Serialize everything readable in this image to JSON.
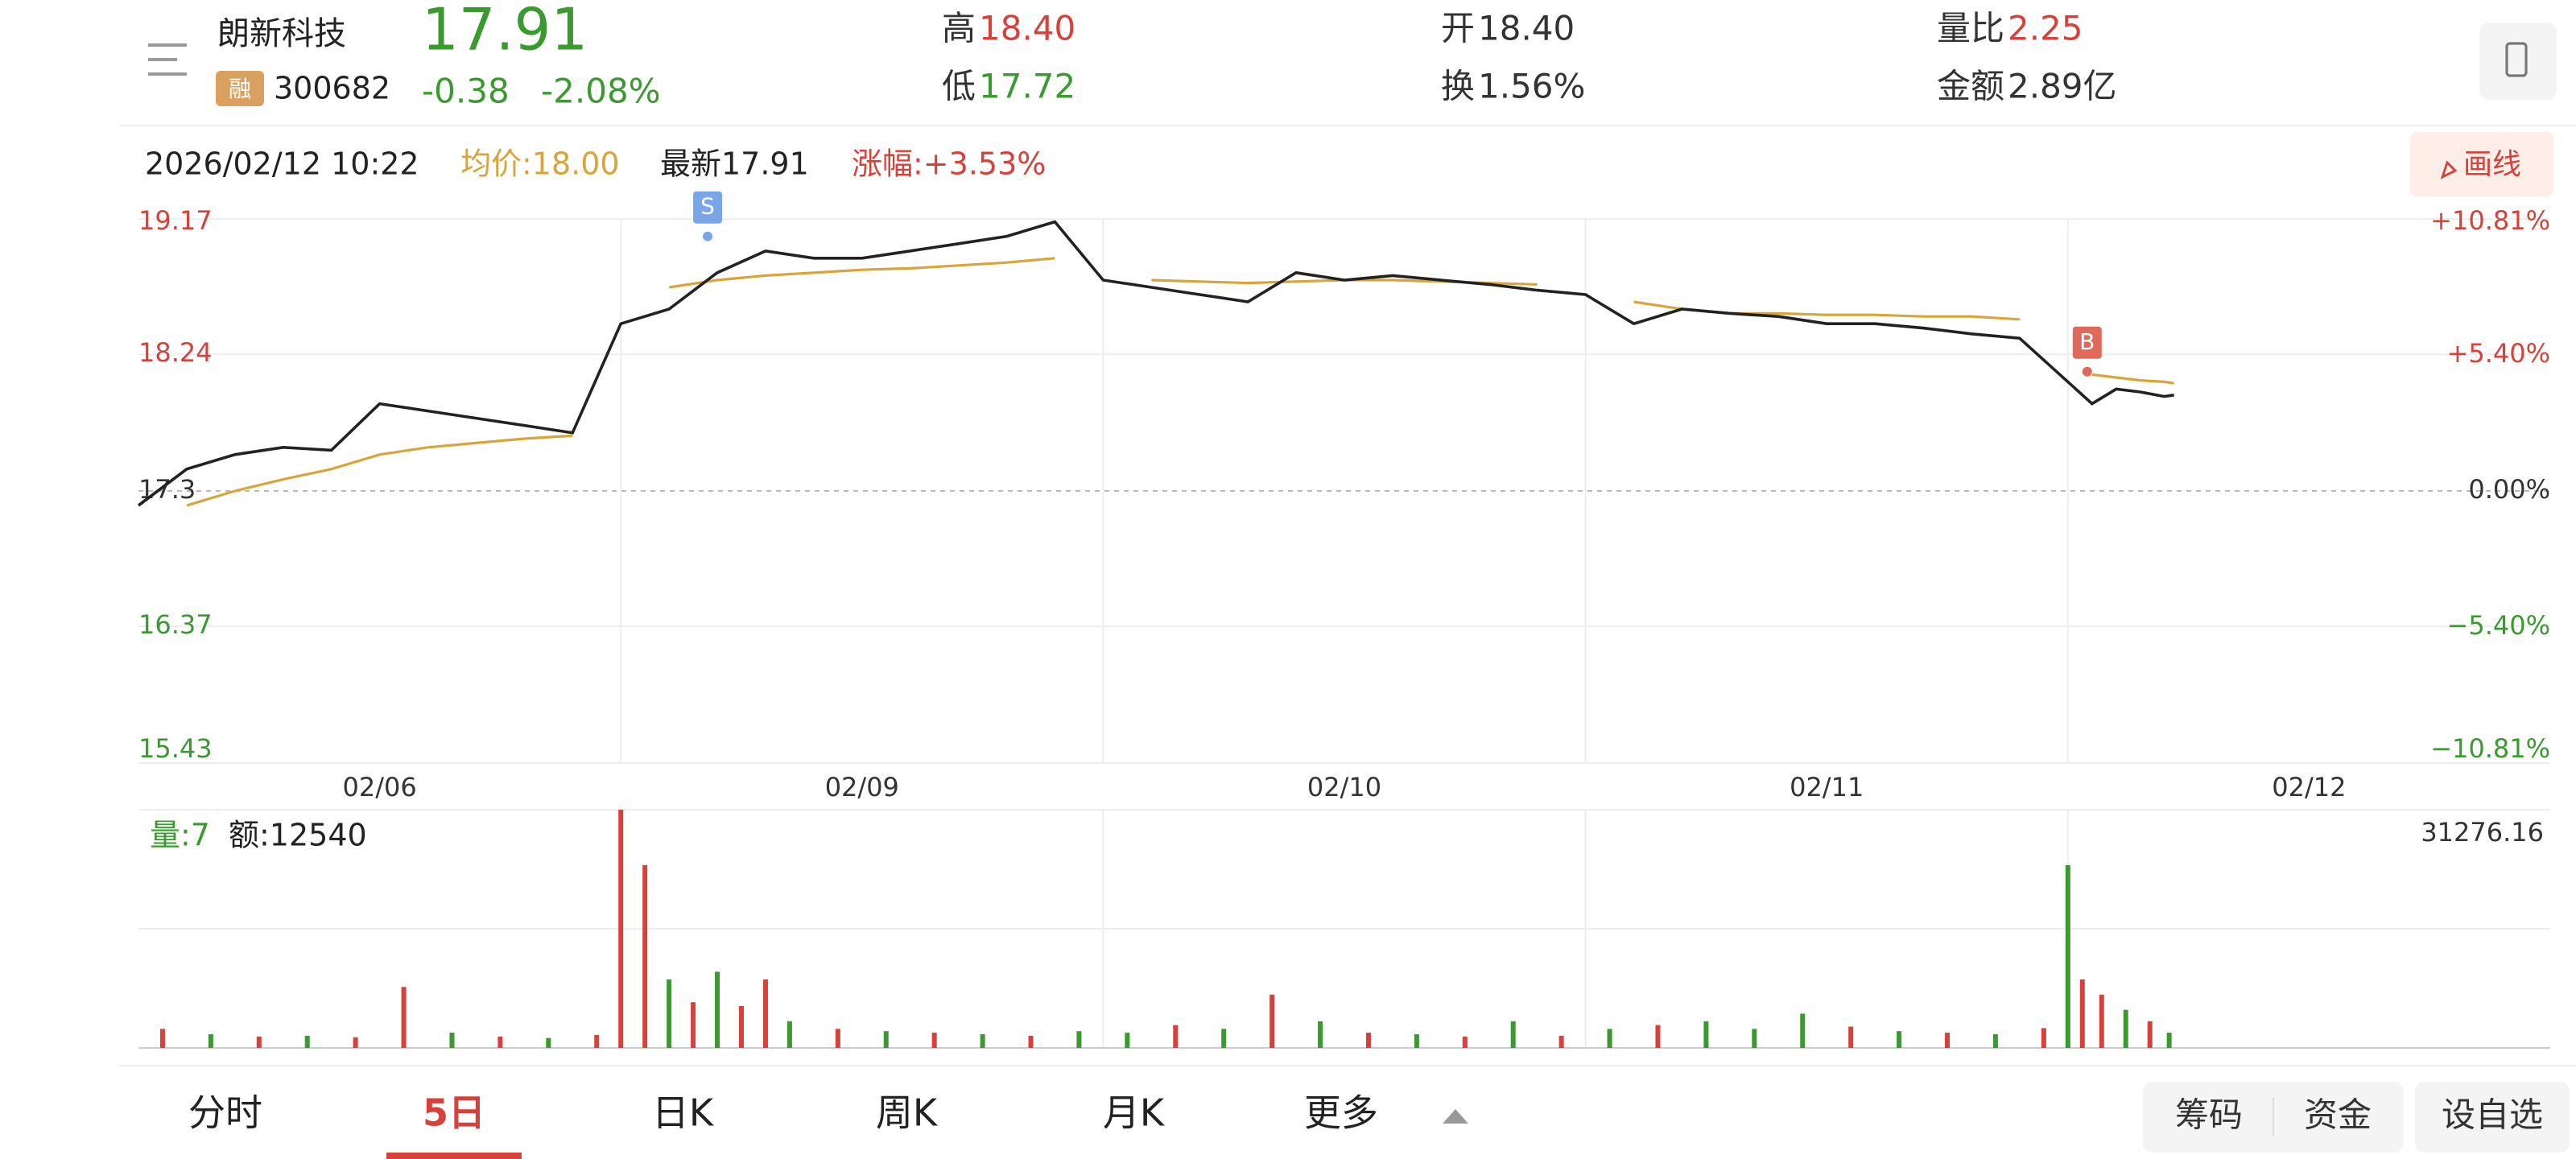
{
  "header": {
    "name": "朗新科技",
    "price": "17.91",
    "badge": "融",
    "code": "300682",
    "change": "-0.38",
    "change_pct": "-2.08%",
    "stats": [
      {
        "label": "高",
        "value": "18.40"
      },
      {
        "label": "低",
        "value": "17.72"
      },
      {
        "label": "开",
        "value": "18.40"
      },
      {
        "label": "换",
        "value": "1.56%"
      },
      {
        "label": "量比",
        "value": "2.25"
      },
      {
        "label": "金额",
        "value": "2.89亿"
      }
    ]
  },
  "info": {
    "datetime": "2026/02/12 10:22",
    "avg": "均价:18.00",
    "latest": "最新17.91",
    "rise": "涨幅:+3.53%",
    "draw_button": "画线"
  },
  "chart_data": [
    {
      "type": "line",
      "xlim": [
        0,
        5
      ],
      "xticks": [
        {
          "value": 0.5,
          "label": "02/06"
        },
        {
          "value": 1.5,
          "label": "02/09"
        },
        {
          "value": 2.5,
          "label": "02/10"
        },
        {
          "value": 3.5,
          "label": "02/11"
        },
        {
          "value": 4.5,
          "label": "02/12"
        }
      ],
      "ylim": [
        15.43,
        19.17
      ],
      "yticks": [
        15.43,
        16.37,
        17.3,
        {
          "value": 18.24,
          "label": "18.24"
        },
        19.17
      ],
      "y2lim": [
        -10.81,
        10.81
      ],
      "y2ticks": [
        {
          "value": -10.81,
          "label": "−10.81%"
        },
        {
          "value": -5.4,
          "label": "−5.40%"
        },
        {
          "value": 0,
          "label": "0.00%"
        },
        {
          "value": 5.4,
          "label": "+5.40%"
        },
        {
          "value": 10.81,
          "label": "+10.81%"
        }
      ],
      "annotations": [
        "S",
        "B"
      ],
      "x": [
        0,
        0.1,
        0.2,
        0.3,
        0.4,
        0.5,
        0.6,
        0.7,
        0.8,
        0.9,
        1,
        1.1,
        1.2,
        1.3,
        1.4,
        1.5,
        1.6,
        1.7,
        1.8,
        1.9,
        2,
        2.1,
        2.2,
        2.3,
        2.4,
        2.5,
        2.6,
        2.7,
        2.8,
        2.9,
        3,
        3.1,
        3.2,
        3.3,
        3.4,
        3.5,
        3.6,
        3.7,
        3.8,
        3.9,
        4,
        4.05,
        4.1,
        4.15,
        4.2,
        4.22
      ],
      "series": [
        {
          "color": "#222222",
          "values": [
            17.2,
            17.45,
            17.55,
            17.6,
            17.58,
            17.9,
            17.85,
            17.8,
            17.75,
            17.7,
            18.45,
            18.55,
            18.8,
            18.95,
            18.9,
            18.9,
            18.95,
            19.0,
            19.05,
            19.15,
            18.75,
            18.7,
            18.65,
            18.6,
            18.8,
            18.75,
            18.78,
            18.75,
            18.72,
            18.68,
            18.65,
            18.45,
            18.55,
            18.52,
            18.5,
            18.45,
            18.45,
            18.42,
            18.38,
            18.35,
            18.05,
            17.9,
            18.0,
            17.98,
            17.95,
            17.96
          ]
        },
        {
          "color": "#d9a43a",
          "values": [
            null,
            17.2,
            17.3,
            17.38,
            17.45,
            17.55,
            17.6,
            17.63,
            17.66,
            17.68,
            null,
            18.7,
            18.75,
            18.78,
            18.8,
            18.82,
            18.83,
            18.85,
            18.87,
            18.9,
            null,
            18.75,
            18.74,
            18.73,
            18.74,
            18.75,
            18.75,
            18.74,
            18.73,
            18.72,
            null,
            18.6,
            18.55,
            18.52,
            18.52,
            18.51,
            18.51,
            18.5,
            18.5,
            18.48,
            null,
            18.1,
            18.08,
            18.06,
            18.05,
            18.04
          ]
        }
      ]
    },
    {
      "type": "bar",
      "vol_label": "量:7",
      "amount_label": "额:12540",
      "xlim": [
        0,
        5
      ],
      "ylim": [
        0,
        31276.16
      ],
      "yticks": [
        31276.16
      ],
      "x": [
        0.05,
        0.15,
        0.25,
        0.35,
        0.45,
        0.55,
        0.65,
        0.75,
        0.85,
        0.95,
        1.0,
        1.05,
        1.1,
        1.15,
        1.2,
        1.25,
        1.3,
        1.35,
        1.45,
        1.55,
        1.65,
        1.75,
        1.85,
        1.95,
        2.05,
        2.15,
        2.25,
        2.35,
        2.45,
        2.55,
        2.65,
        2.75,
        2.85,
        2.95,
        3.05,
        3.15,
        3.25,
        3.35,
        3.45,
        3.55,
        3.65,
        3.75,
        3.85,
        3.95,
        4.0,
        4.03,
        4.07,
        4.12,
        4.17,
        4.21
      ],
      "values": [
        2500,
        1800,
        1500,
        1600,
        1400,
        8000,
        2000,
        1500,
        1300,
        1700,
        31276,
        24000,
        9000,
        6000,
        10000,
        5500,
        9000,
        3500,
        2500,
        2200,
        2000,
        1800,
        1600,
        2200,
        2000,
        3000,
        2500,
        7000,
        3500,
        2000,
        1800,
        1500,
        3500,
        1600,
        2500,
        3000,
        3500,
        2500,
        4500,
        2800,
        2200,
        2000,
        1800,
        2600,
        24000,
        9000,
        7000,
        5000,
        3500,
        2000
      ],
      "colors": [
        "#d6413a",
        "#3a9a2f",
        "#d6413a",
        "#3a9a2f",
        "#d6413a",
        "#d6413a",
        "#3a9a2f",
        "#d6413a",
        "#3a9a2f",
        "#d6413a",
        "#d6413a",
        "#d6413a",
        "#3a9a2f",
        "#d6413a",
        "#3a9a2f",
        "#d6413a",
        "#d6413a",
        "#3a9a2f",
        "#d6413a",
        "#3a9a2f",
        "#d6413a",
        "#3a9a2f",
        "#d6413a",
        "#3a9a2f",
        "#3a9a2f",
        "#d6413a",
        "#3a9a2f",
        "#d6413a",
        "#3a9a2f",
        "#d6413a",
        "#3a9a2f",
        "#d6413a",
        "#3a9a2f",
        "#d6413a",
        "#3a9a2f",
        "#d6413a",
        "#3a9a2f",
        "#3a9a2f",
        "#3a9a2f",
        "#d6413a",
        "#3a9a2f",
        "#d6413a",
        "#3a9a2f",
        "#d6413a",
        "#3a9a2f",
        "#d6413a",
        "#d6413a",
        "#3a9a2f",
        "#d6413a",
        "#3a9a2f"
      ]
    }
  ],
  "tabs": [
    "分时",
    "5日",
    "日K",
    "周K",
    "月K",
    "更多"
  ],
  "buttons": [
    "筹码",
    "资金",
    "设自选"
  ]
}
